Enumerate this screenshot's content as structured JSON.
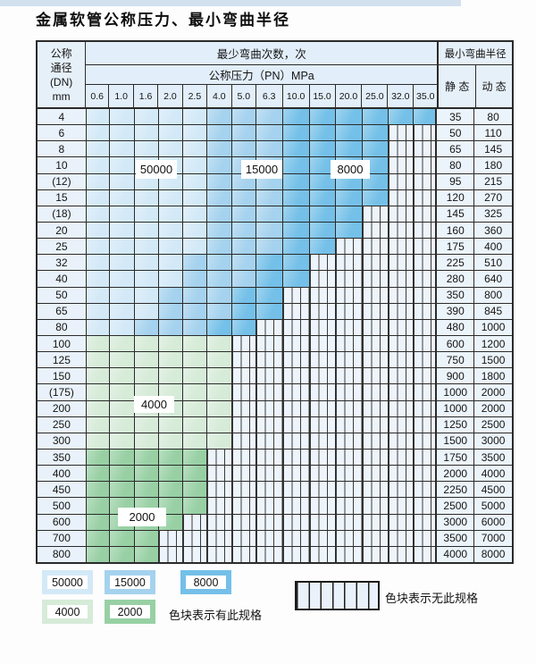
{
  "title": "金属软管公称压力、最小弯曲半径",
  "table": {
    "header": {
      "dn_lines": [
        "公称",
        "通径",
        "(DN)",
        "mm"
      ],
      "bend_cycles_label": "最少弯曲次数，次",
      "pressure_label": "公称压力（PN）MPa",
      "radius_label": "最小弯曲半径",
      "static_label": "静 态",
      "dynamic_label": "动 态",
      "pressure_cols": [
        "0.6",
        "1.0",
        "1.6",
        "2.0",
        "2.5",
        "4.0",
        "5.0",
        "6.3",
        "10.0",
        "15.0",
        "20.0",
        "25.0",
        "32.0",
        "35.0"
      ]
    },
    "rows": [
      {
        "dn": "4",
        "colored": 14,
        "zone": "blue",
        "static": "35",
        "dynamic": "80"
      },
      {
        "dn": "6",
        "colored": 12,
        "zone": "blue",
        "static": "50",
        "dynamic": "110"
      },
      {
        "dn": "8",
        "colored": 12,
        "zone": "blue",
        "static": "65",
        "dynamic": "145"
      },
      {
        "dn": "10",
        "colored": 12,
        "zone": "blue",
        "static": "80",
        "dynamic": "180"
      },
      {
        "dn": "(12)",
        "colored": 12,
        "zone": "blue",
        "static": "95",
        "dynamic": "215"
      },
      {
        "dn": "15",
        "colored": 12,
        "zone": "blue",
        "static": "120",
        "dynamic": "270"
      },
      {
        "dn": "(18)",
        "colored": 11,
        "zone": "blue",
        "static": "145",
        "dynamic": "325"
      },
      {
        "dn": "20",
        "colored": 11,
        "zone": "blue",
        "static": "160",
        "dynamic": "360"
      },
      {
        "dn": "25",
        "colored": 10,
        "zone": "blue",
        "static": "175",
        "dynamic": "400"
      },
      {
        "dn": "32",
        "colored": 9,
        "zone": "blue",
        "static": "225",
        "dynamic": "510"
      },
      {
        "dn": "40",
        "colored": 9,
        "zone": "blue",
        "static": "280",
        "dynamic": "640"
      },
      {
        "dn": "50",
        "colored": 8,
        "zone": "blue",
        "static": "350",
        "dynamic": "800"
      },
      {
        "dn": "65",
        "colored": 8,
        "zone": "blue",
        "static": "390",
        "dynamic": "845"
      },
      {
        "dn": "80",
        "colored": 7,
        "zone": "blue",
        "static": "480",
        "dynamic": "1000"
      },
      {
        "dn": "100",
        "colored": 6,
        "zone": "g4000",
        "static": "600",
        "dynamic": "1200"
      },
      {
        "dn": "125",
        "colored": 6,
        "zone": "g4000",
        "static": "750",
        "dynamic": "1500"
      },
      {
        "dn": "150",
        "colored": 6,
        "zone": "g4000",
        "static": "900",
        "dynamic": "1800"
      },
      {
        "dn": "(175)",
        "colored": 6,
        "zone": "g4000",
        "static": "1000",
        "dynamic": "2000"
      },
      {
        "dn": "200",
        "colored": 6,
        "zone": "g4000",
        "static": "1000",
        "dynamic": "2000"
      },
      {
        "dn": "250",
        "colored": 6,
        "zone": "g4000",
        "static": "1250",
        "dynamic": "2500"
      },
      {
        "dn": "300",
        "colored": 6,
        "zone": "g4000",
        "static": "1500",
        "dynamic": "3000"
      },
      {
        "dn": "350",
        "colored": 5,
        "zone": "g2000",
        "static": "1750",
        "dynamic": "3500"
      },
      {
        "dn": "400",
        "colored": 5,
        "zone": "g2000",
        "static": "2000",
        "dynamic": "4000"
      },
      {
        "dn": "450",
        "colored": 5,
        "zone": "g2000",
        "static": "2250",
        "dynamic": "4500"
      },
      {
        "dn": "500",
        "colored": 5,
        "zone": "g2000",
        "static": "2500",
        "dynamic": "5000"
      },
      {
        "dn": "600",
        "colored": 4,
        "zone": "g2000",
        "static": "3000",
        "dynamic": "6000"
      },
      {
        "dn": "700",
        "colored": 3,
        "zone": "g2000",
        "static": "3500",
        "dynamic": "7000"
      },
      {
        "dn": "800",
        "colored": 3,
        "zone": "g2000",
        "static": "4000",
        "dynamic": "8000"
      }
    ]
  },
  "overlays": {
    "l50000": "50000",
    "l15000": "15000",
    "l8000": "8000",
    "l4000": "4000",
    "l2000": "2000"
  },
  "legend": {
    "items": [
      {
        "key": "b50000",
        "label": "50000"
      },
      {
        "key": "b15000",
        "label": "15000"
      },
      {
        "key": "b8000",
        "label": "8000"
      },
      {
        "key": "g4000",
        "label": "4000"
      },
      {
        "key": "g2000",
        "label": "2000"
      }
    ],
    "has_spec_note": "色块表示有此规格",
    "no_spec_note": "色块表示无此规格"
  },
  "colors": {
    "b50000": "#d3e9f7",
    "b15000": "#a5d2ee",
    "b8000": "#74c0e8",
    "g4000": "#d6ebd8",
    "g2000": "#98d0a4"
  }
}
